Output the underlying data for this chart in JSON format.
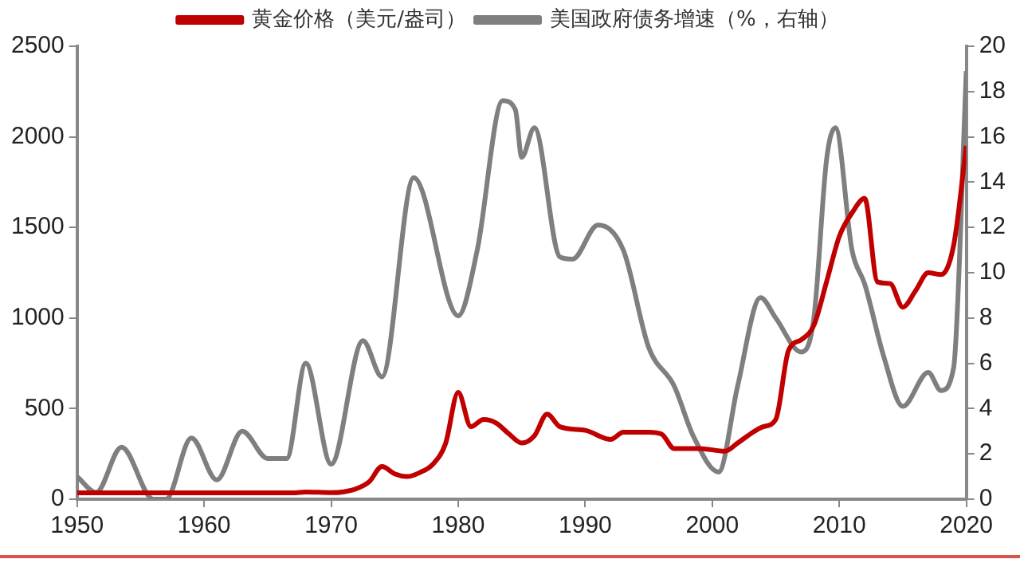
{
  "chart_data": {
    "type": "line",
    "xlim": [
      1950,
      2020
    ],
    "xticks": [
      1950,
      1960,
      1970,
      1980,
      1990,
      2000,
      2010,
      2020
    ],
    "ylim": [
      0,
      2500
    ],
    "yticks": [
      0,
      500,
      1000,
      1500,
      2000,
      2500
    ],
    "y2lim": [
      0,
      20
    ],
    "y2ticks": [
      0,
      2,
      4,
      6,
      8,
      10,
      12,
      14,
      16,
      18,
      20
    ],
    "grid": false,
    "legend": "top",
    "marker": "none",
    "line_style": "solid",
    "series": [
      {
        "name": "黄金价格（美元/盎司）",
        "color": "#c00000",
        "x": [
          1950,
          1955,
          1960,
          1965,
          1967,
          1968,
          1970,
          1971,
          1972,
          1973,
          1974,
          1975,
          1976,
          1977,
          1978,
          1979,
          1980,
          1981,
          1982,
          1983,
          1984,
          1985,
          1986,
          1987,
          1988,
          1990,
          1992,
          1993,
          1995,
          1996,
          1997,
          1999,
          2001,
          2002,
          2003,
          2004,
          2005,
          2006,
          2007,
          2008,
          2009,
          2010,
          2011,
          2012,
          2013,
          2014,
          2015,
          2016,
          2017,
          2018,
          2019,
          2020
        ],
        "values": [
          35,
          35,
          35,
          35,
          35,
          40,
          36,
          41,
          58,
          97,
          180,
          140,
          125,
          148,
          193,
          306,
          590,
          400,
          440,
          420,
          360,
          310,
          350,
          470,
          400,
          380,
          330,
          370,
          370,
          360,
          280,
          280,
          265,
          310,
          360,
          400,
          440,
          820,
          880,
          960,
          1200,
          1450,
          1580,
          1660,
          1200,
          1190,
          1060,
          1150,
          1250,
          1240,
          1400,
          1950
        ]
      },
      {
        "name": "美国政府债务增速（%，右轴）",
        "color": "#7f7f7f",
        "axis": "y2",
        "x": [
          1950,
          1951.5,
          1953.5,
          1956,
          1957,
          1959,
          1961,
          1963,
          1965,
          1966.5,
          1968,
          1970,
          1972.5,
          1974,
          1976.5,
          1980,
          1981.5,
          1983.5,
          1984.5,
          1985,
          1986,
          1988,
          1989,
          1991,
          1993,
          1995,
          1997,
          1998.5,
          2000.5,
          2002,
          2003.8,
          2005,
          2007,
          2008,
          2009,
          2009.7,
          2011,
          2012,
          2013.5,
          2015,
          2017,
          2018,
          2019,
          2020
        ],
        "values": [
          1.0,
          0.3,
          2.3,
          0,
          0,
          2.7,
          0.85,
          3.0,
          1.8,
          1.8,
          6.0,
          1.55,
          7.0,
          5.4,
          14.2,
          8.1,
          11,
          17.6,
          17.2,
          15.1,
          16.4,
          10.7,
          10.6,
          12.1,
          11,
          6.7,
          5,
          2.8,
          1.2,
          5,
          8.9,
          8,
          6.5,
          8,
          15,
          16.4,
          11,
          9.5,
          6.3,
          4.1,
          5.6,
          4.8,
          5.8,
          18.9
        ]
      }
    ]
  }
}
